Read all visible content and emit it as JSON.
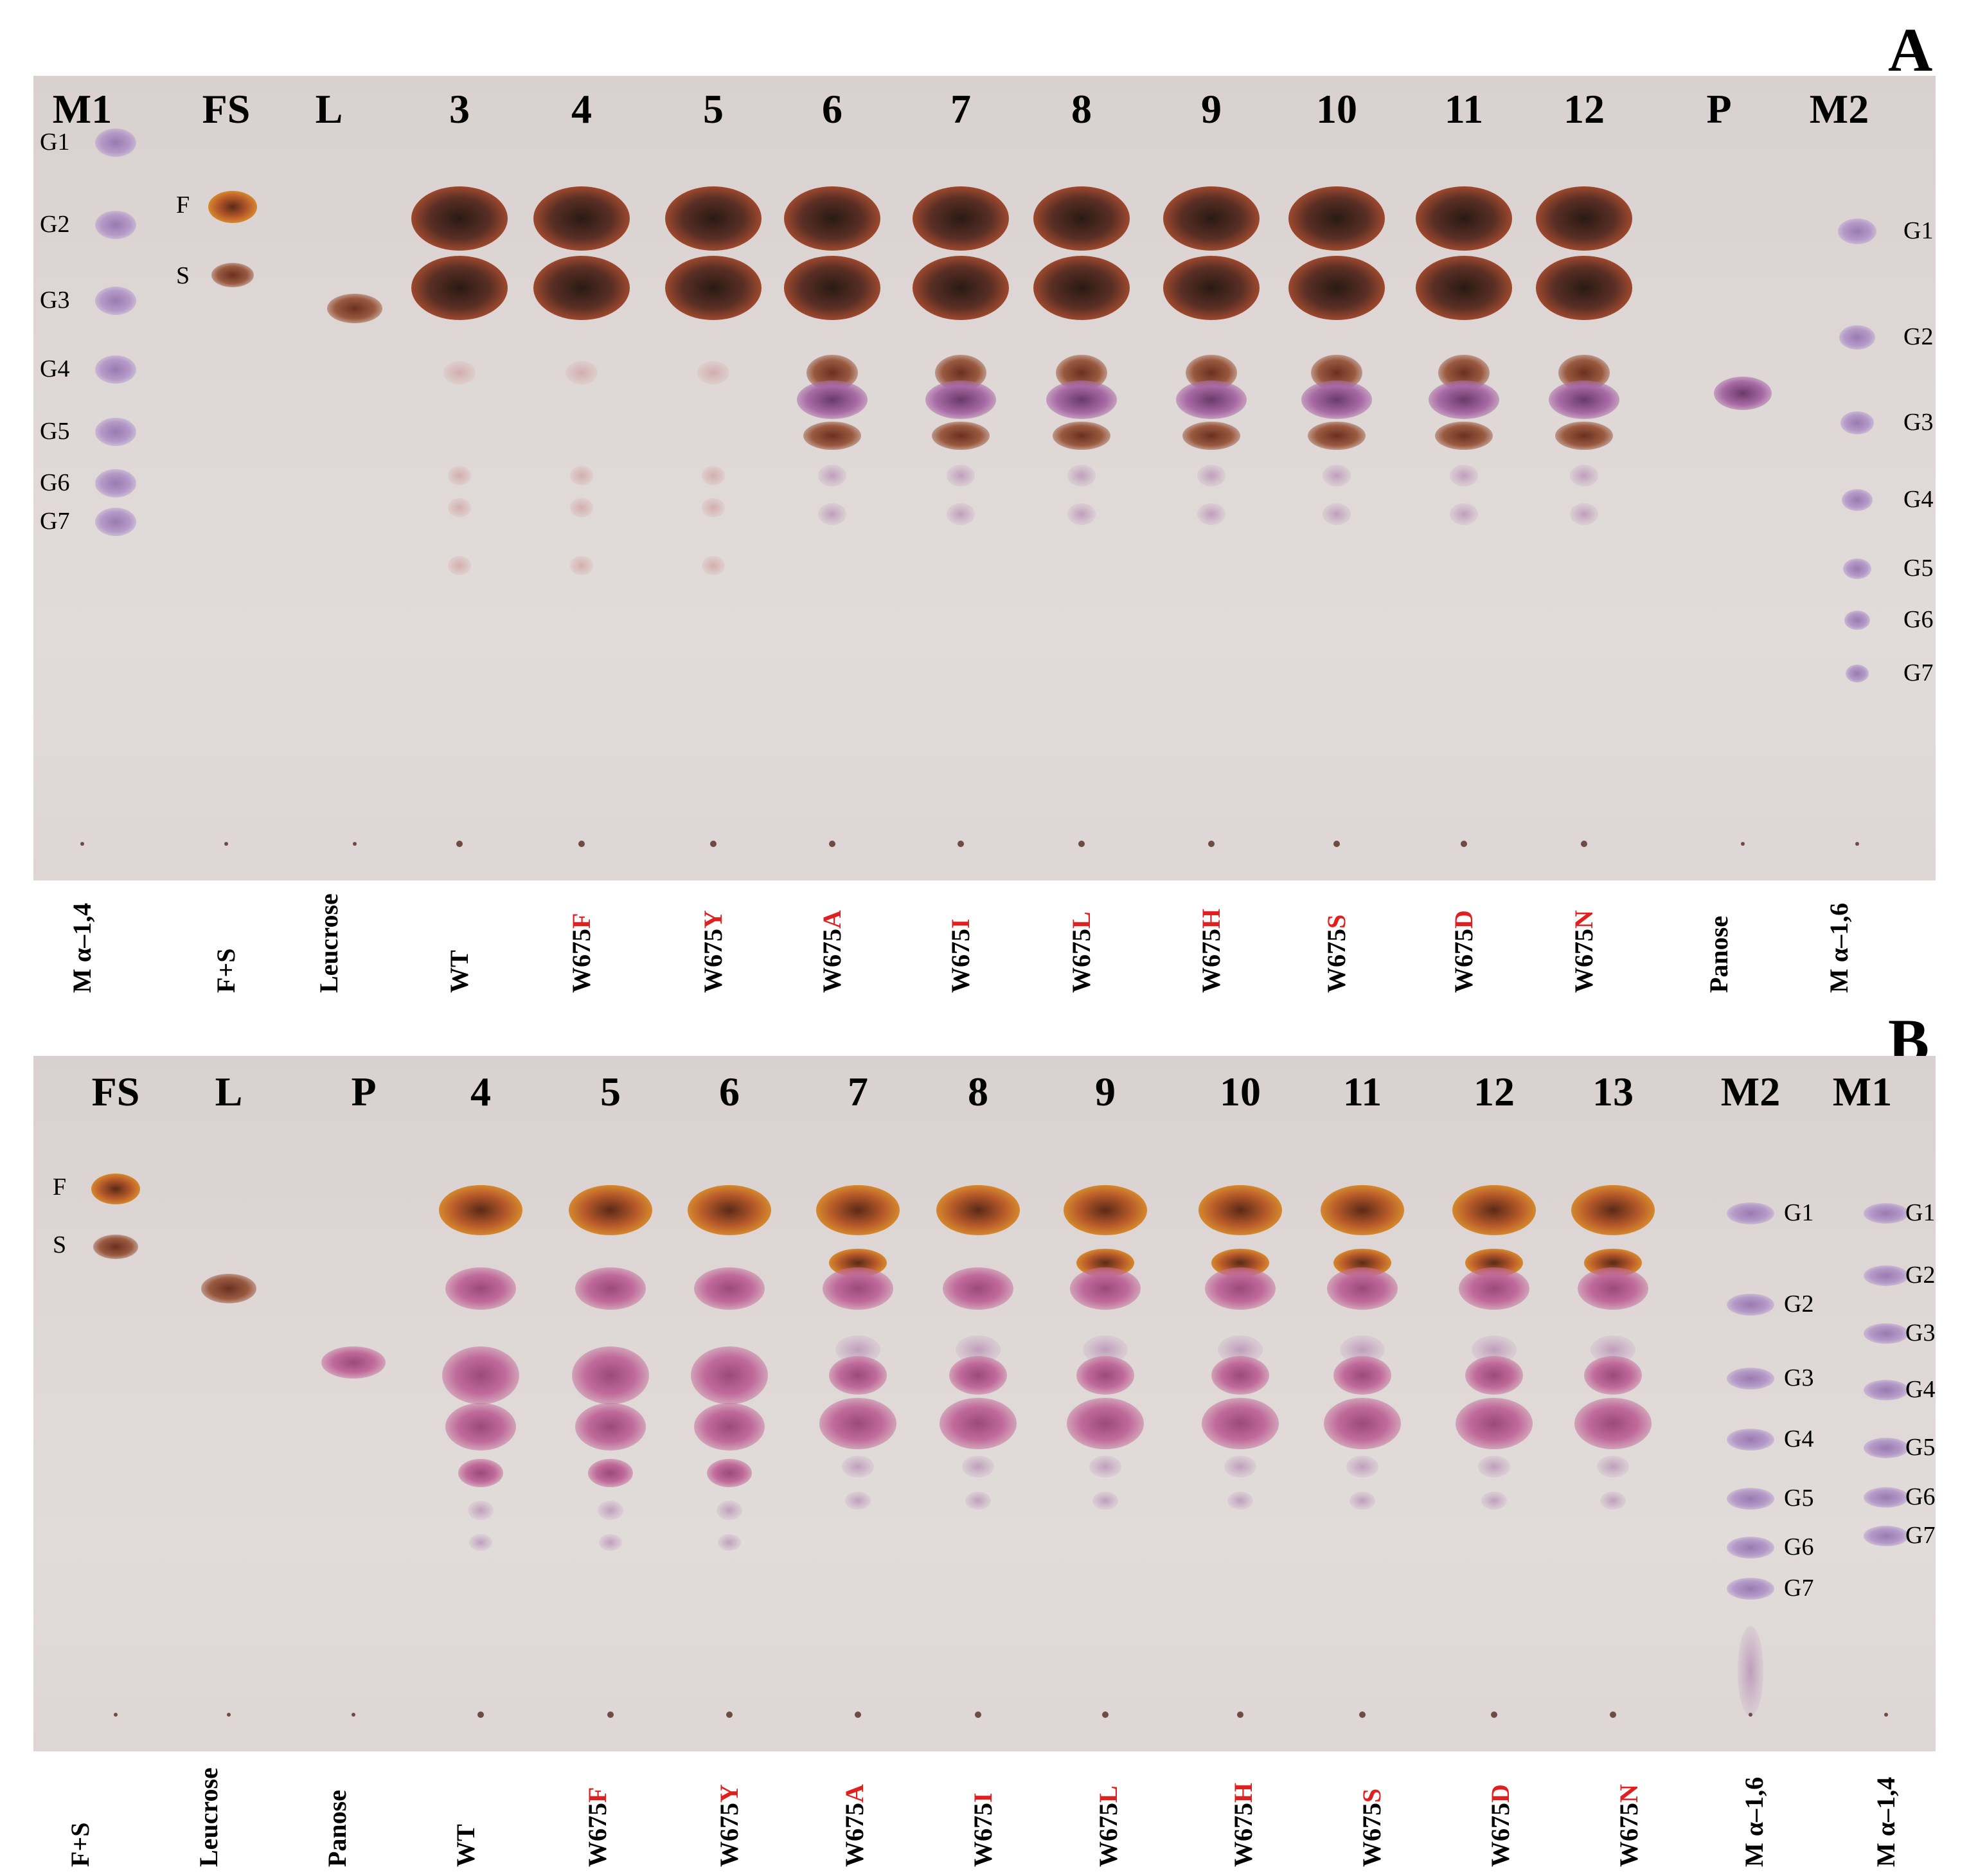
{
  "panel_a": {
    "letter": "A",
    "headers": [
      "M1",
      "FS",
      "L",
      "3",
      "4",
      "5",
      "6",
      "7",
      "8",
      "9",
      "10",
      "11",
      "12",
      "P",
      "M2"
    ],
    "left_std": [
      "G1",
      "G2",
      "G3",
      "G4",
      "G5",
      "G6",
      "G7"
    ],
    "fs_marks": [
      "F",
      "S"
    ],
    "right_std": [
      "G1",
      "G2",
      "G3",
      "G4",
      "G5",
      "G6",
      "G7"
    ],
    "bottom": [
      {
        "base": "M α–1,4",
        "mut": ""
      },
      {
        "base": "F+S",
        "mut": ""
      },
      {
        "base": "Leucrose",
        "mut": ""
      },
      {
        "base": "WT",
        "mut": ""
      },
      {
        "base": "W675",
        "mut": "F"
      },
      {
        "base": "W675",
        "mut": "Y"
      },
      {
        "base": "W675",
        "mut": "A"
      },
      {
        "base": "W675",
        "mut": "I"
      },
      {
        "base": "W675",
        "mut": "L"
      },
      {
        "base": "W675",
        "mut": "H"
      },
      {
        "base": "W675",
        "mut": "S"
      },
      {
        "base": "W675",
        "mut": "D"
      },
      {
        "base": "W675",
        "mut": "N"
      },
      {
        "base": "Panose",
        "mut": ""
      },
      {
        "base": "M α–1,6",
        "mut": ""
      }
    ]
  },
  "panel_b": {
    "letter": "B",
    "headers": [
      "FS",
      "L",
      "P",
      "4",
      "5",
      "6",
      "7",
      "8",
      "9",
      "10",
      "11",
      "12",
      "13",
      "M2",
      "M1"
    ],
    "fs_marks": [
      "F",
      "S"
    ],
    "m2_std": [
      "G1",
      "G2",
      "G3",
      "G4",
      "G5",
      "G6",
      "G7"
    ],
    "m1_std": [
      "G1",
      "G2",
      "G3",
      "G4",
      "G5",
      "G6",
      "G7"
    ],
    "bottom": [
      {
        "base": "F+S",
        "mut": ""
      },
      {
        "base": "Leucrose",
        "mut": ""
      },
      {
        "base": "Panose",
        "mut": ""
      },
      {
        "base": "WT",
        "mut": ""
      },
      {
        "base": "W675",
        "mut": "F"
      },
      {
        "base": "W675",
        "mut": "Y"
      },
      {
        "base": "W675",
        "mut": "A"
      },
      {
        "base": "W675",
        "mut": "I"
      },
      {
        "base": "W675",
        "mut": "L"
      },
      {
        "base": "W675",
        "mut": "H"
      },
      {
        "base": "W675",
        "mut": "S"
      },
      {
        "base": "W675",
        "mut": "D"
      },
      {
        "base": "W675",
        "mut": "N"
      },
      {
        "base": "M α–1,6",
        "mut": ""
      },
      {
        "base": "M α–1,4",
        "mut": ""
      }
    ]
  },
  "colors": {
    "plate": "#ded7d5",
    "std_spot": "#b49ac8",
    "fructose": "#c88a3a",
    "sucrose": "#9a6a4a",
    "product_dark": "#5a2f25",
    "product_purple": "#a86aa6",
    "mutation_red": "#e0201f"
  }
}
